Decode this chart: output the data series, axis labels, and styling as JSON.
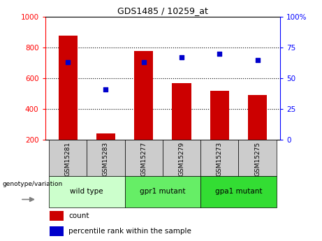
{
  "title": "GDS1485 / 10259_at",
  "samples": [
    "GSM15281",
    "GSM15283",
    "GSM15277",
    "GSM15279",
    "GSM15273",
    "GSM15275"
  ],
  "bar_values": [
    880,
    240,
    780,
    570,
    520,
    490
  ],
  "percentile_values": [
    63,
    41,
    63,
    67,
    70,
    65
  ],
  "bar_color": "#cc0000",
  "dot_color": "#0000cc",
  "ylim_left": [
    200,
    1000
  ],
  "left_ticks": [
    200,
    400,
    600,
    800,
    1000
  ],
  "right_ticks": [
    0,
    25,
    50,
    75,
    100
  ],
  "right_tick_labels": [
    "0",
    "25",
    "50",
    "75",
    "100%"
  ],
  "group_info": [
    {
      "indices": [
        0,
        1
      ],
      "label": "wild type",
      "color": "#ccffcc"
    },
    {
      "indices": [
        2,
        3
      ],
      "label": "gpr1 mutant",
      "color": "#66ee66"
    },
    {
      "indices": [
        4,
        5
      ],
      "label": "gpa1 mutant",
      "color": "#33dd33"
    }
  ],
  "sample_bg_color": "#cccccc",
  "legend_count_label": "count",
  "legend_pct_label": "percentile rank within the sample",
  "genotype_label": "genotype/variation"
}
